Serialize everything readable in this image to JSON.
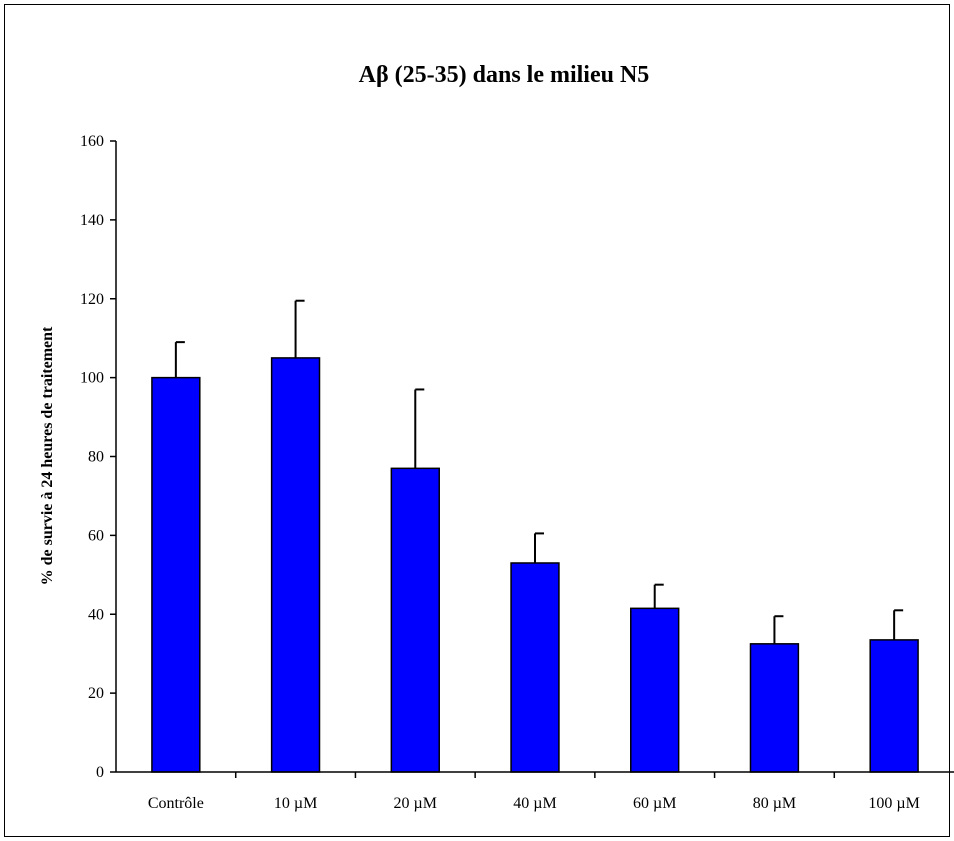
{
  "chart_data": {
    "type": "bar",
    "title": "Aβ (25-35) dans le milieu N5",
    "xlabel": "",
    "ylabel": "% de survie à 24 heures de traitement",
    "categories": [
      "Contrôle",
      "10 µM",
      "20 µM",
      "40 µM",
      "60 µM",
      "80 µM",
      "100 µM"
    ],
    "values": [
      100,
      105,
      77,
      53,
      41.5,
      32.5,
      33.5
    ],
    "error_bars": [
      9,
      14.5,
      20,
      7.5,
      6,
      7,
      7.5
    ],
    "ylim": [
      0,
      160
    ],
    "yticks": [
      "0",
      "20",
      "40",
      "60",
      "80",
      "100",
      "120",
      "140",
      "160"
    ],
    "grid": false,
    "legend": "none",
    "bar_color": "#0000FF"
  }
}
